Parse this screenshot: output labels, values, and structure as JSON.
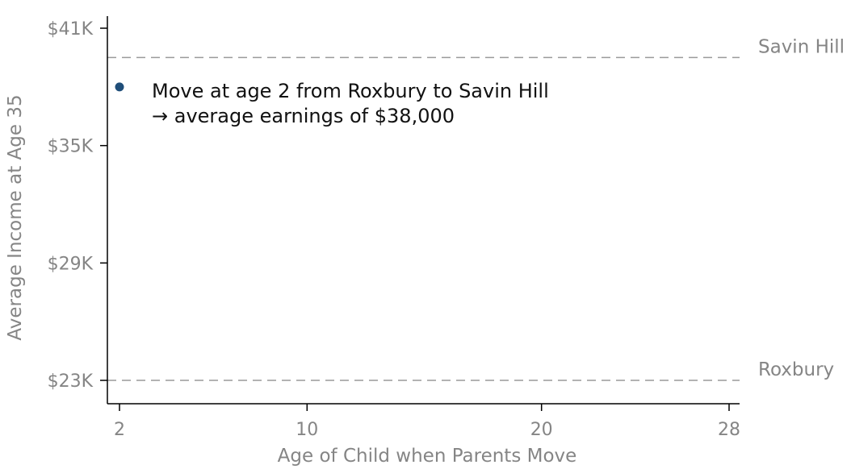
{
  "chart_data": {
    "type": "scatter",
    "xlabel": "Age of Child when Parents Move",
    "ylabel": "Average Income at Age 35",
    "xlim": [
      2,
      28
    ],
    "ylim": [
      23000,
      41000
    ],
    "x_ticks": [
      2,
      10,
      20,
      28
    ],
    "x_tick_labels": [
      "2",
      "10",
      "20",
      "28"
    ],
    "y_ticks": [
      23000,
      29000,
      35000,
      41000
    ],
    "y_tick_labels": [
      "$23K",
      "$29K",
      "$35K",
      "$41K"
    ],
    "grid": false,
    "reference_lines": [
      {
        "label": "Savin Hill",
        "y": 39500,
        "style": "dashed"
      },
      {
        "label": "Roxbury",
        "y": 23000,
        "style": "dashed"
      }
    ],
    "points": [
      {
        "x": 2,
        "y": 38000,
        "color": "#1f4e79"
      }
    ],
    "annotation": {
      "line1": "Move at age 2 from Roxbury to Savin Hill",
      "line2": "→ average earnings of $38,000"
    }
  }
}
